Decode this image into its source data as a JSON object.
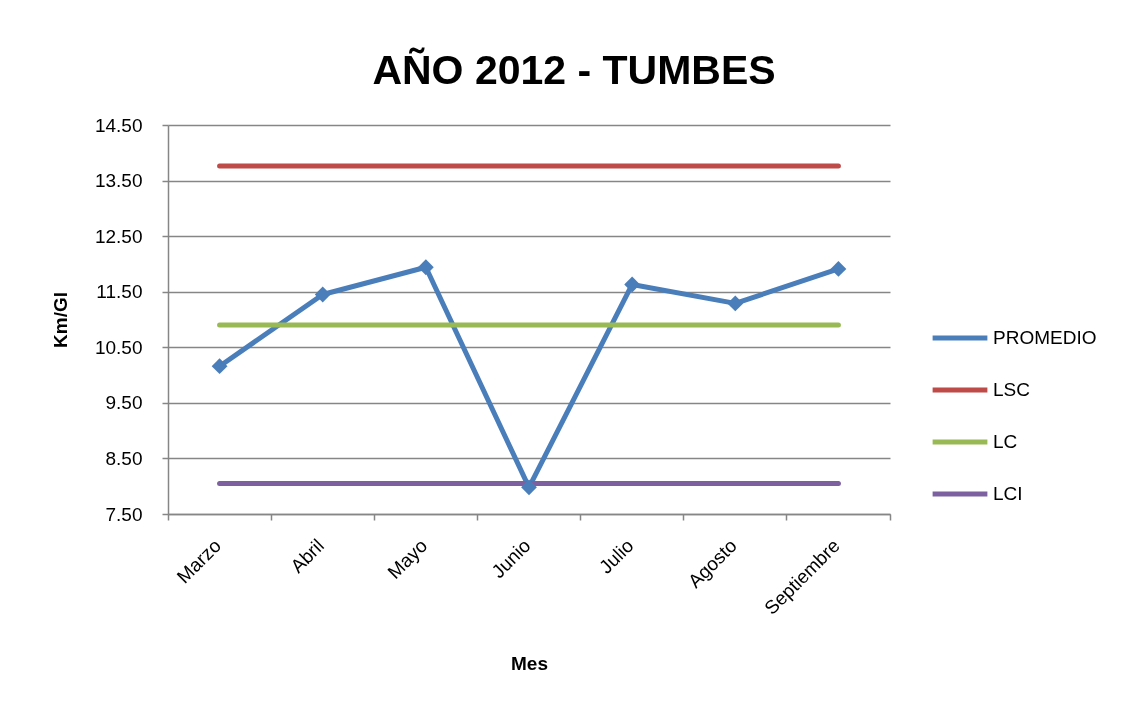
{
  "chart_data": {
    "type": "line",
    "title": "AÑO 2012 - TUMBES",
    "xlabel": "Mes",
    "ylabel": "Km/Gl",
    "categories": [
      "Marzo",
      "Abril",
      "Mayo",
      "Junio",
      "Julio",
      "Agosto",
      "Septiembre"
    ],
    "series": [
      {
        "name": "PROMEDIO",
        "color": "#4a7ebb",
        "marker": "diamond",
        "values": [
          10.16,
          11.45,
          11.94,
          7.98,
          11.63,
          11.29,
          11.91
        ]
      },
      {
        "name": "LSC",
        "color": "#be4b48",
        "marker": "none",
        "values": [
          13.76,
          13.76,
          13.76,
          13.76,
          13.76,
          13.76,
          13.76
        ]
      },
      {
        "name": "LC",
        "color": "#98b954",
        "marker": "none",
        "values": [
          10.9,
          10.9,
          10.9,
          10.9,
          10.9,
          10.9,
          10.9
        ]
      },
      {
        "name": "LCI",
        "color": "#7d60a0",
        "marker": "none",
        "values": [
          8.05,
          8.05,
          8.05,
          8.05,
          8.05,
          8.05,
          8.05
        ]
      }
    ],
    "ylim": [
      7.5,
      14.5
    ],
    "yticks": [
      {
        "value": 7.5,
        "label": "7.50"
      },
      {
        "value": 8.5,
        "label": "8.50"
      },
      {
        "value": 9.5,
        "label": "9.50"
      },
      {
        "value": 10.5,
        "label": "10.50"
      },
      {
        "value": 11.5,
        "label": "11.50"
      },
      {
        "value": 12.5,
        "label": "12.50"
      },
      {
        "value": 13.5,
        "label": "13.50"
      },
      {
        "value": 14.5,
        "label": "14.50"
      }
    ],
    "grid": "y",
    "legend": "right",
    "line_style": "solid"
  }
}
